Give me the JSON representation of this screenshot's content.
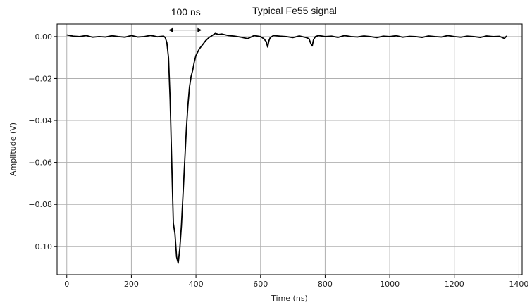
{
  "chart_data": {
    "type": "line",
    "title": "",
    "xlabel": "Time (ns)",
    "ylabel": "Amplitude (V)",
    "xlim": [
      -30,
      1410
    ],
    "ylim": [
      -0.1135,
      0.006
    ],
    "grid": true,
    "legend": "none",
    "x_ticks": [
      0,
      200,
      400,
      600,
      800,
      1000,
      1200,
      1400
    ],
    "y_ticks": [
      0.0,
      -0.02,
      -0.04,
      -0.06,
      -0.08,
      -0.1
    ],
    "x_tick_labels": [
      "0",
      "200",
      "400",
      "600",
      "800",
      "1000",
      "1200",
      "1400"
    ],
    "y_tick_labels": [
      "0.00",
      "−0.02",
      "−0.04",
      "−0.06",
      "−0.08",
      "−0.10"
    ],
    "annotations": [
      {
        "text": "100 ns",
        "arrow_x": [
          315,
          418
        ],
        "arrow_y": 0.0031
      },
      {
        "text": "Typical Fe55 signal"
      }
    ],
    "series": [
      {
        "color": "#000000",
        "x": [
          0,
          20,
          40,
          60,
          80,
          100,
          120,
          140,
          160,
          180,
          200,
          220,
          240,
          260,
          280,
          300,
          305,
          310,
          315,
          320,
          325,
          330,
          335,
          340,
          345,
          350,
          355,
          360,
          365,
          370,
          375,
          380,
          385,
          390,
          395,
          400,
          410,
          420,
          430,
          440,
          450,
          460,
          470,
          480,
          500,
          520,
          540,
          560,
          580,
          600,
          610,
          618,
          622,
          626,
          630,
          640,
          660,
          680,
          700,
          720,
          740,
          750,
          756,
          760,
          764,
          770,
          780,
          800,
          820,
          840,
          860,
          880,
          900,
          920,
          940,
          960,
          980,
          1000,
          1020,
          1040,
          1060,
          1080,
          1100,
          1120,
          1140,
          1160,
          1180,
          1200,
          1220,
          1240,
          1260,
          1280,
          1300,
          1320,
          1340,
          1355,
          1362
        ],
        "y": [
          0.0008,
          0.0002,
          0.0,
          0.0005,
          -0.0003,
          0.0,
          -0.0002,
          0.0004,
          0.0,
          -0.0003,
          0.0005,
          -0.0002,
          0.0,
          0.0006,
          -0.0001,
          0.0002,
          -0.0005,
          -0.003,
          -0.01,
          -0.03,
          -0.06,
          -0.089,
          -0.094,
          -0.105,
          -0.108,
          -0.101,
          -0.09,
          -0.075,
          -0.06,
          -0.045,
          -0.033,
          -0.024,
          -0.019,
          -0.016,
          -0.012,
          -0.009,
          -0.006,
          -0.004,
          -0.002,
          -0.0005,
          0.0005,
          0.0015,
          0.001,
          0.0012,
          0.0005,
          0.0002,
          -0.0003,
          -0.001,
          0.0005,
          0.0,
          -0.001,
          -0.0025,
          -0.005,
          -0.002,
          -0.0005,
          0.0005,
          0.0002,
          0.0,
          -0.0005,
          0.0003,
          -0.0004,
          -0.001,
          -0.0035,
          -0.0045,
          -0.0015,
          0.0,
          0.0005,
          0.0,
          0.0002,
          -0.0004,
          0.0005,
          0.0,
          -0.0002,
          0.0003,
          0.0,
          -0.0005,
          0.0002,
          0.0,
          0.0004,
          -0.0003,
          0.0001,
          0.0,
          -0.0004,
          0.0003,
          0.0,
          -0.0002,
          0.0005,
          0.0,
          -0.0003,
          0.0002,
          0.0,
          -0.0004,
          0.0003,
          0.0,
          0.0001,
          -0.0009,
          0.0003
        ]
      }
    ]
  }
}
